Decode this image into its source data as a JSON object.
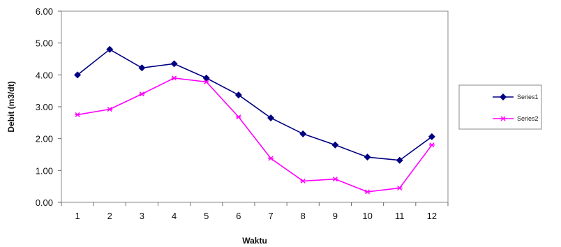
{
  "chart_data": {
    "type": "line",
    "title": "",
    "xlabel": "Waktu",
    "ylabel": "Debit (m3/dt)",
    "categories": [
      "1",
      "2",
      "3",
      "4",
      "5",
      "6",
      "7",
      "8",
      "9",
      "10",
      "11",
      "12"
    ],
    "ylim": [
      0,
      6
    ],
    "yticks": [
      "0.00",
      "1.00",
      "2.00",
      "3.00",
      "4.00",
      "5.00",
      "6.00"
    ],
    "grid": false,
    "legend_position": "right",
    "series": [
      {
        "name": "Series1",
        "color": "#000080",
        "marker": "diamond",
        "values": [
          4.0,
          4.8,
          4.22,
          4.35,
          3.9,
          3.37,
          2.65,
          2.15,
          1.8,
          1.42,
          1.32,
          2.06
        ]
      },
      {
        "name": "Series2",
        "color": "#ff00ff",
        "marker": "star",
        "values": [
          2.75,
          2.92,
          3.4,
          3.9,
          3.78,
          2.68,
          1.38,
          0.67,
          0.73,
          0.33,
          0.45,
          1.8
        ]
      }
    ]
  }
}
